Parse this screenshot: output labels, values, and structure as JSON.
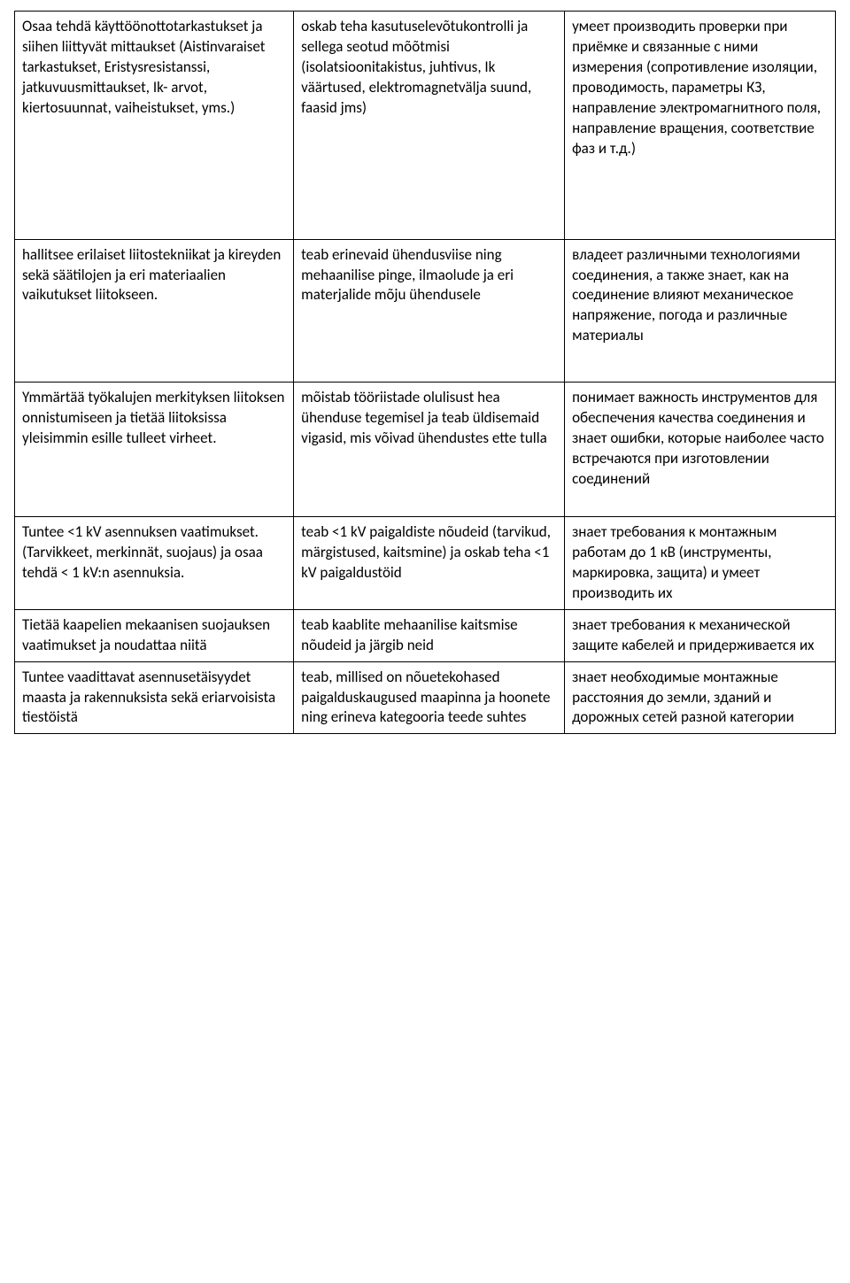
{
  "table": {
    "rows": [
      {
        "extra_padding": "pad-bottom-lg",
        "cells": [
          "Osaa tehdä käyttöönottotarkastukset ja siihen liittyvät mittaukset (Aistinvaraiset tarkastukset, Eristysresistanssi, jatkuvuusmittaukset, Ik- arvot, kiertosuunnat, vaiheistukset, yms.)",
          "oskab teha kasutuselevõtukontrolli ja sellega seotud mõõtmisi (isolatsioonitakistus, juhtivus, Ik väärtused, elektromagnetvälja suund, faasid jms)",
          "умеет производить проверки при приёмке и связанные с ними измерения (сопротивление изоляции, проводимость, параметры КЗ, направление электромагнитного поля, направление вращения, соответствие фаз и т.д.)"
        ]
      },
      {
        "extra_padding": "pad-bottom-md",
        "cells": [
          "hallitsee erilaiset liitostekniikat ja kireyden sekä säätilojen ja eri materiaalien vaikutukset liitokseen.",
          "teab erinevaid ühendusviise ning mehaanilise pinge, ilmaolude ja eri materjalide mõju ühendusele",
          "владеет различными технологиями соединения, а также знает, как на соединение влияют механическое напряжение, погода и различные материалы"
        ]
      },
      {
        "extra_padding": "pad-bottom-sm",
        "cells": [
          "Ymmärtää työkalujen merkityksen liitoksen onnistumiseen ja tietää liitoksissa yleisimmin esille tulleet virheet.",
          "mõistab tööriistade olulisust hea ühenduse tegemisel ja teab üldisemaid vigasid, mis võivad ühendustes ette tulla",
          "понимает важность инструментов для обеспечения качества соединения и знает ошибки, которые наиболее часто встречаются при изготовлении соединений"
        ]
      },
      {
        "extra_padding": "",
        "cells": [
          "Tuntee <1 kV asennuksen vaatimukset. (Tarvikkeet, merkinnät, suojaus) ja osaa tehdä < 1 kV:n asennuksia.",
          "teab <1 kV paigaldiste nõudeid (tarvikud, märgistused, kaitsmine) ja oskab teha <1 kV paigaldustöid",
          "знает требования к монтажным работам до 1 кВ (инструменты, маркировка, защита) и умеет производить их"
        ]
      },
      {
        "extra_padding": "",
        "cells": [
          "Tietää kaapelien mekaanisen suojauksen vaatimukset ja noudattaa niitä",
          "teab kaablite mehaanilise kaitsmise nõudeid ja järgib neid",
          "знает требования к механической защите кабелей и придерживается их"
        ]
      },
      {
        "extra_padding": "",
        "cells": [
          "Tuntee vaadittavat asennusetäisyydet maasta ja rakennuksista sekä eriarvoisista tiestöistä",
          "teab, millised on nõuetekohased paigalduskaugused maapinna ja hoonete ning erineva kategooria teede suhtes",
          "знает необходимые монтажные расстояния до земли, зданий и дорожных сетей разной категории"
        ]
      }
    ]
  }
}
